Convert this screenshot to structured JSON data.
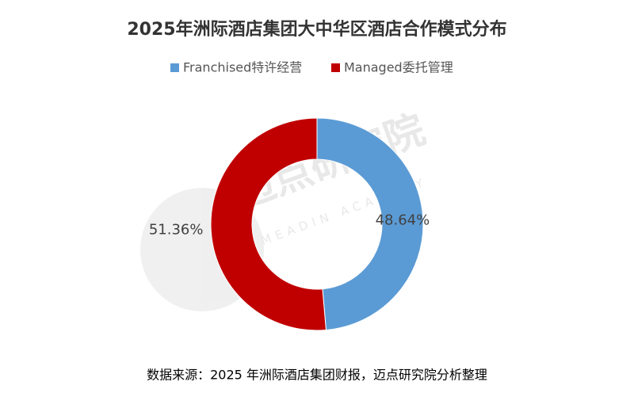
{
  "chart_data": {
    "type": "pie",
    "title": "2025年洲际酒店集团大中华区酒店合作模式分布",
    "categories": [
      "Franchised特许经营",
      "Managed委托管理"
    ],
    "values": [
      48.64,
      51.36
    ],
    "value_labels": [
      "48.64%",
      "51.36%"
    ],
    "colors": [
      "#5b9bd5",
      "#c00000"
    ],
    "legend": "top",
    "source": "数据来源：2025 年洲际酒店集团财报，迈点研究院分析整理",
    "watermark": [
      "迈点研究院",
      "MEADIN ACADEMY"
    ]
  }
}
